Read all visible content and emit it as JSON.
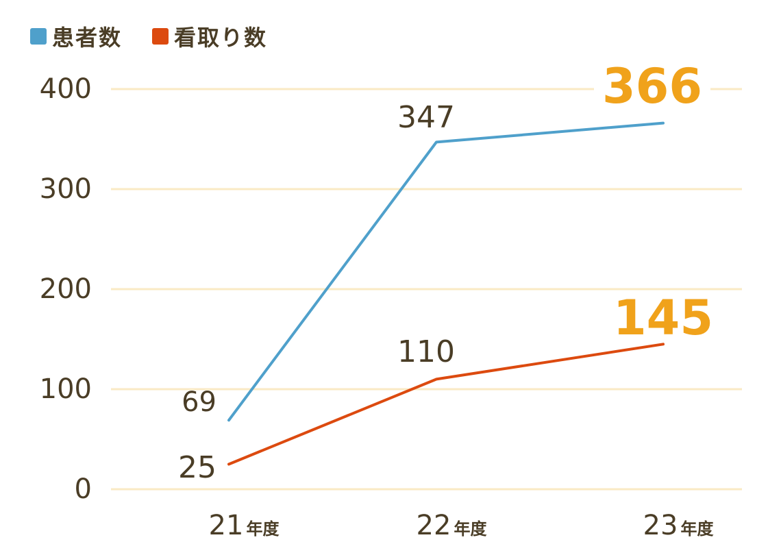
{
  "chart_data": {
    "type": "line",
    "categories": [
      "21",
      "22",
      "23"
    ],
    "category_suffix": "年度",
    "series": [
      {
        "name": "患者数",
        "values": [
          69,
          347,
          366
        ],
        "color": "#4fa0cb",
        "labels": [
          "69",
          "347",
          "366"
        ]
      },
      {
        "name": "看取り数",
        "values": [
          25,
          110,
          145
        ],
        "color": "#dc4a0f",
        "labels": [
          "25",
          "110",
          "145"
        ]
      }
    ],
    "ylim": [
      0,
      400
    ],
    "yticks": [
      "0",
      "100",
      "200",
      "300",
      "400"
    ],
    "grid": true,
    "legend": "top-left",
    "colors": {
      "grid": "#faeac4",
      "axis_text": "#4a3d26",
      "highlight": "#f0a21b"
    }
  }
}
